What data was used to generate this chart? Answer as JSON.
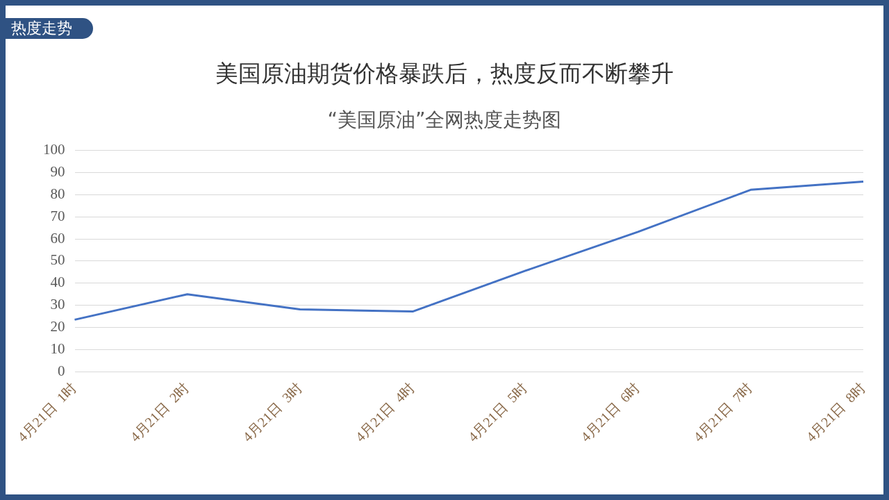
{
  "chart_data": {
    "type": "line",
    "title": "美国原油期货价格暴跌后，热度反而不断攀升",
    "subtitle": "“美国原油”全网热度走势图",
    "annotations": [
      "热度走势"
    ],
    "categories": [
      "4月21日  1时",
      "4月21日  2时",
      "4月21日  3时",
      "4月21日  4时",
      "4月21日  5时",
      "4月21日  6时",
      "4月21日  7时",
      "4月21日  8时"
    ],
    "series": [
      {
        "color": "#4472c4",
        "values": [
          23.5,
          35,
          28.2,
          27.2,
          45.6,
          63.2,
          82.2,
          85.9
        ]
      }
    ],
    "ylim": [
      0,
      100
    ],
    "yticks": [
      0,
      10,
      20,
      30,
      40,
      50,
      60,
      70,
      80,
      90,
      100
    ],
    "grid": "y",
    "legend": false,
    "marker": "none",
    "line_style": "solid"
  }
}
